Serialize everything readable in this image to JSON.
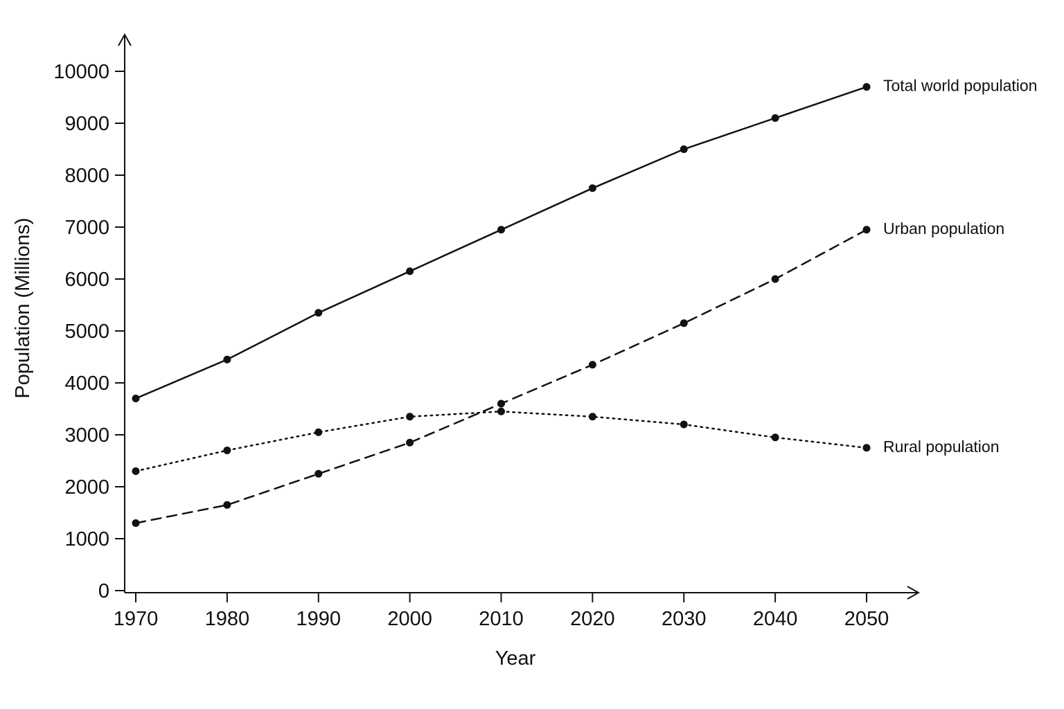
{
  "chart_data": {
    "type": "line",
    "title": "",
    "xlabel": "Year",
    "ylabel": "Population (Millions)",
    "x": [
      1970,
      1980,
      1990,
      2000,
      2010,
      2020,
      2030,
      2040,
      2050
    ],
    "x_tick_labels": [
      "1970",
      "1980",
      "1990",
      "2000",
      "2010",
      "2020",
      "2030",
      "2040",
      "2050"
    ],
    "y_ticks": [
      0,
      1000,
      2000,
      3000,
      4000,
      5000,
      6000,
      7000,
      8000,
      9000,
      10000
    ],
    "y_tick_labels": [
      "0",
      "1000",
      "2000",
      "3000",
      "4000",
      "5000",
      "6000",
      "7000",
      "8000",
      "9000",
      "10000"
    ],
    "ylim": [
      0,
      10000
    ],
    "grid": false,
    "legend": "none (series labelled at line ends)",
    "series": [
      {
        "name": "Total world population",
        "line_style": "solid",
        "values": [
          3700,
          4450,
          5350,
          6150,
          6950,
          7750,
          8500,
          9100,
          9700
        ]
      },
      {
        "name": "Urban population",
        "line_style": "dashed",
        "values": [
          1300,
          1650,
          2250,
          2850,
          3600,
          4350,
          5150,
          6000,
          6950
        ]
      },
      {
        "name": "Rural population",
        "line_style": "dotted",
        "values": [
          2300,
          2700,
          3050,
          3350,
          3450,
          3350,
          3200,
          2950,
          2750
        ]
      }
    ],
    "colors": {
      "line": "#111111",
      "marker": "#111111",
      "axis": "#111111"
    }
  }
}
